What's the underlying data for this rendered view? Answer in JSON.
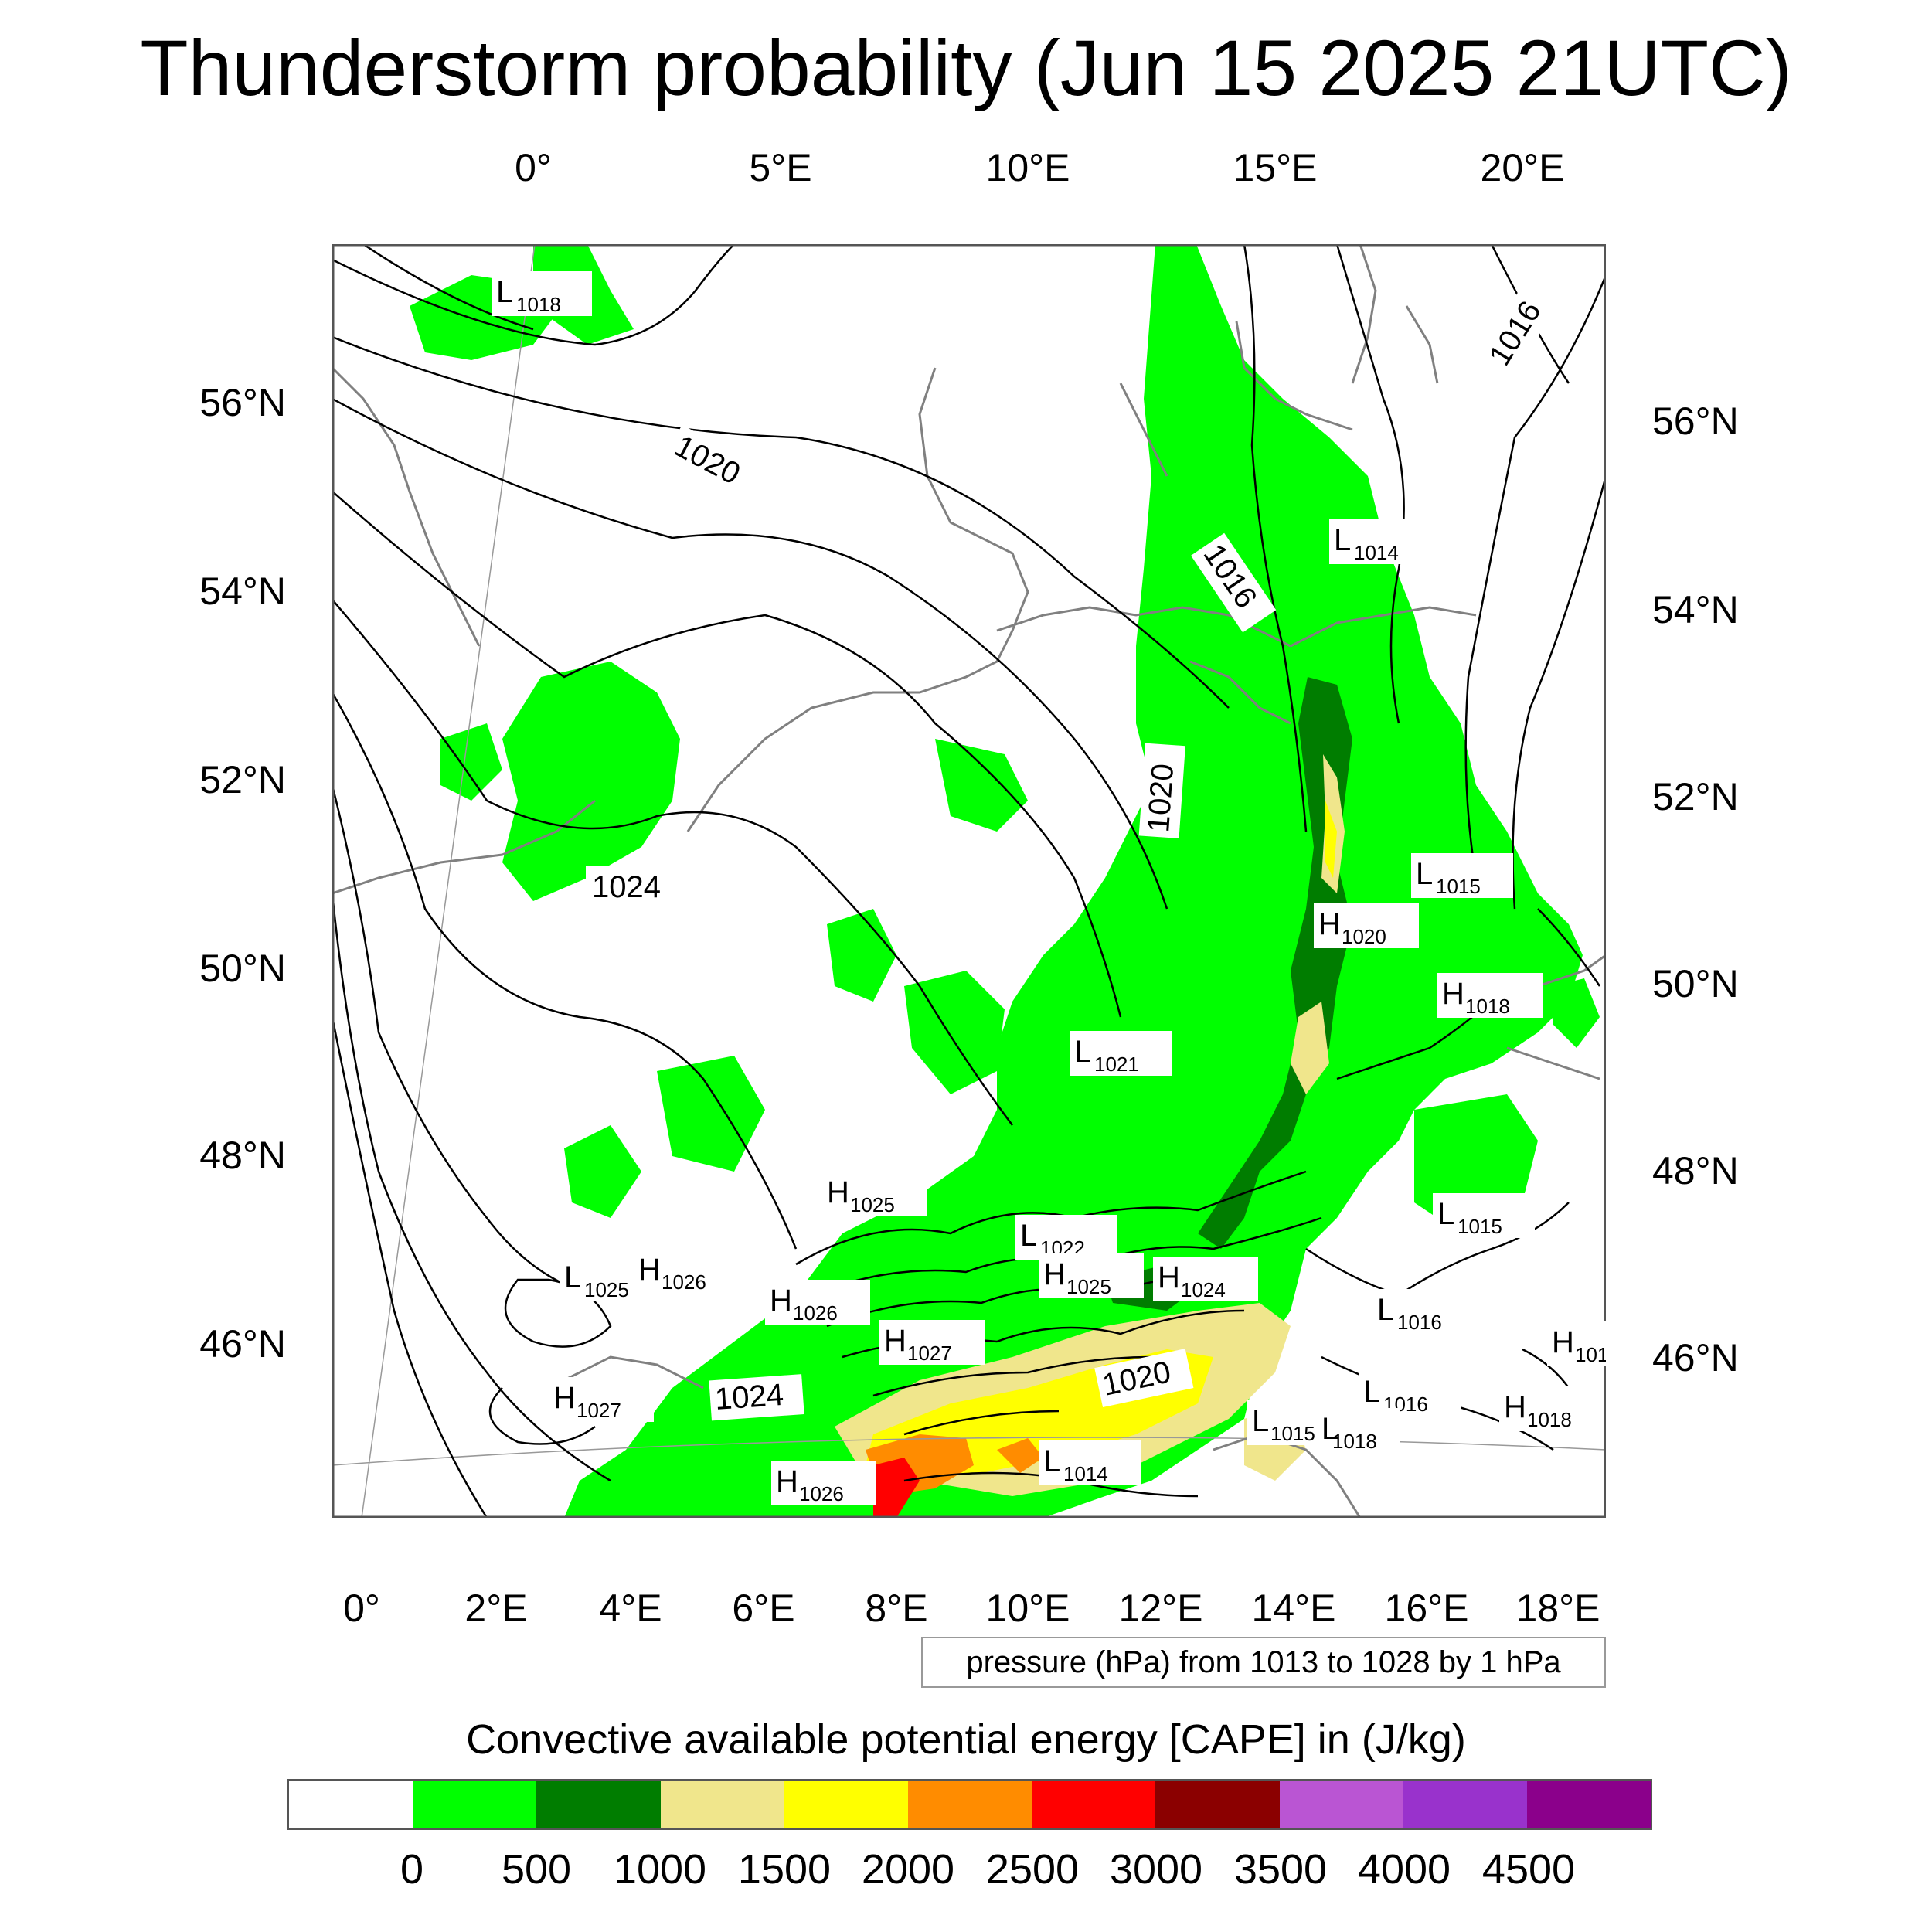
{
  "title": "Thunderstorm probability (Jun 15 2025 21UTC)",
  "top_ticks": [
    "0°",
    "5°E",
    "10°E",
    "15°E",
    "20°E"
  ],
  "bottom_ticks": [
    "0°",
    "2°E",
    "4°E",
    "6°E",
    "8°E",
    "10°E",
    "12°E",
    "14°E",
    "16°E",
    "18°E"
  ],
  "left_ticks": [
    "56°N",
    "54°N",
    "52°N",
    "50°N",
    "48°N",
    "46°N"
  ],
  "right_ticks": [
    "56°N",
    "54°N",
    "52°N",
    "50°N",
    "48°N",
    "46°N"
  ],
  "pressure_labels": [
    {
      "kind": "L",
      "value": "1018"
    },
    {
      "kind": "",
      "value": "1020"
    },
    {
      "kind": "",
      "value": "1016"
    },
    {
      "kind": "L",
      "value": "1014"
    },
    {
      "kind": "",
      "value": "1016"
    },
    {
      "kind": "",
      "value": "1020"
    },
    {
      "kind": "",
      "value": "1024"
    },
    {
      "kind": "L",
      "value": "1015"
    },
    {
      "kind": "H",
      "value": "1020"
    },
    {
      "kind": "H",
      "value": "1018"
    },
    {
      "kind": "L",
      "value": "1021"
    },
    {
      "kind": "H",
      "value": "1025"
    },
    {
      "kind": "L",
      "value": "1015"
    },
    {
      "kind": "L",
      "value": "1022"
    },
    {
      "kind": "H",
      "value": "1025"
    },
    {
      "kind": "H",
      "value": "1024"
    },
    {
      "kind": "L",
      "value": "1025"
    },
    {
      "kind": "H",
      "value": "1026"
    },
    {
      "kind": "H",
      "value": "1026"
    },
    {
      "kind": "L",
      "value": "1016"
    },
    {
      "kind": "H",
      "value": "1027"
    },
    {
      "kind": "",
      "value": "1020"
    },
    {
      "kind": "",
      "value": "1024"
    },
    {
      "kind": "H",
      "value": "1027"
    },
    {
      "kind": "L",
      "value": "1016"
    },
    {
      "kind": "L",
      "value": "1015"
    },
    {
      "kind": "L",
      "value": "1018"
    },
    {
      "kind": "H",
      "value": "1018"
    },
    {
      "kind": "L",
      "value": "1014"
    },
    {
      "kind": "H",
      "value": "1026"
    },
    {
      "kind": "H",
      "value": "101"
    }
  ],
  "contour_note": "pressure (hPa) from 1013 to 1028 by 1 hPa",
  "colorbar": {
    "title": "Convective available potential energy [CAPE] in (J/kg)",
    "colors": [
      "#ffffff",
      "#00ff00",
      "#007d00",
      "#f0e68c",
      "#ffff00",
      "#ff8c00",
      "#ff0000",
      "#8b0000",
      "#ba55d3",
      "#9932cc",
      "#8b008b"
    ],
    "labels": [
      "0",
      "500",
      "1000",
      "1500",
      "2000",
      "2500",
      "3000",
      "3500",
      "4000",
      "4500"
    ]
  }
}
